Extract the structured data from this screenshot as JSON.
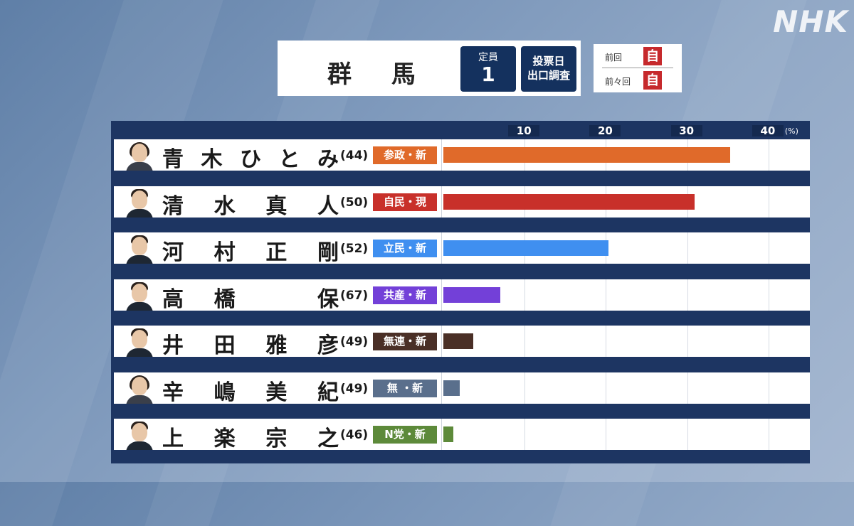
{
  "header": {
    "broadcaster": "NHK",
    "prefecture": "群 馬",
    "seats_label": "定員",
    "seats_value": "1",
    "exit_poll_line1": "投票日",
    "exit_poll_line2": "出口調査",
    "previous_label": "前回",
    "previous_party": "自",
    "before_previous_label": "前々回",
    "before_previous_party": "自"
  },
  "chart_data": {
    "type": "bar",
    "orientation": "horizontal",
    "unit": "(%)",
    "xlim": [
      0,
      45
    ],
    "ticks": [
      "10",
      "20",
      "30",
      "40"
    ],
    "tick_values": [
      10,
      20,
      30,
      40
    ],
    "grid": true,
    "candidates": [
      {
        "chars": [
          "青",
          "木",
          "ひ",
          "と",
          "み"
        ],
        "age": "(44)",
        "party": "参政・新",
        "value": 35.3,
        "color": "#e06a2a",
        "party_color": "#e06a2a",
        "gender": "f"
      },
      {
        "chars": [
          "清",
          "水",
          "真",
          "人"
        ],
        "age": "(50)",
        "party": "自民・現",
        "value": 30.9,
        "color": "#c8302a",
        "party_color": "#c8302a",
        "gender": "m"
      },
      {
        "chars": [
          "河",
          "村",
          "正",
          "剛"
        ],
        "age": "(52)",
        "party": "立民・新",
        "value": 20.3,
        "color": "#3f8ff0",
        "party_color": "#3f8ff0",
        "gender": "m"
      },
      {
        "chars": [
          "高",
          "橋",
          "",
          "保"
        ],
        "age": "(67)",
        "party": "共産・新",
        "value": 7.0,
        "color": "#7340d8",
        "party_color": "#7340d8",
        "gender": "m"
      },
      {
        "chars": [
          "井",
          "田",
          "雅",
          "彦"
        ],
        "age": "(49)",
        "party": "無連・新",
        "value": 3.7,
        "color": "#4a2f26",
        "party_color": "#4a2f26",
        "gender": "m"
      },
      {
        "chars": [
          "辛",
          "嶋",
          "美",
          "紀"
        ],
        "age": "(49)",
        "party": "無 ・新",
        "value": 2.0,
        "color": "#5a6f8c",
        "party_color": "#5a6f8c",
        "gender": "f"
      },
      {
        "chars": [
          "上",
          "楽",
          "宗",
          "之"
        ],
        "age": "(46)",
        "party": "N党・新",
        "value": 1.2,
        "color": "#5d8a3a",
        "party_color": "#5d8a3a",
        "gender": "m"
      }
    ]
  }
}
